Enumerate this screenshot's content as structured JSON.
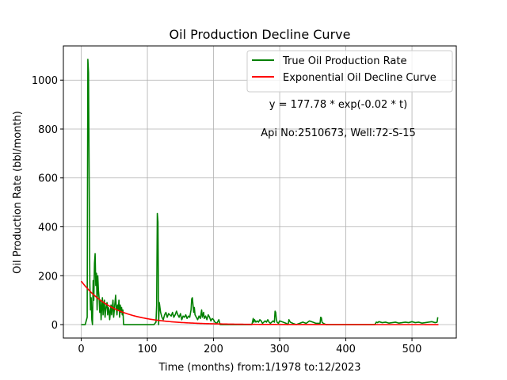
{
  "chart_data": {
    "type": "line",
    "title": "Oil Production Decline Curve",
    "xlabel": "Time (months) from:1/1978 to:12/2023",
    "ylabel": "Oil Production Rate (bbl/month)",
    "xlim": [
      -27,
      567
    ],
    "ylim": [
      -55,
      1140
    ],
    "xticks": [
      0,
      100,
      200,
      300,
      400,
      500
    ],
    "yticks": [
      0,
      200,
      400,
      600,
      800,
      1000
    ],
    "grid": true,
    "legend_position": "top-right",
    "annotations": [
      "y = 177.78 * exp(-0.02 * t)",
      "Api No:2510673, Well:72-S-15"
    ],
    "series": [
      {
        "name": "True Oil Production Rate",
        "color": "#008000",
        "kind": "observed",
        "x": [
          0,
          6,
          9,
          10,
          11,
          12,
          13,
          14,
          15,
          16,
          17,
          18,
          19,
          20,
          21,
          22,
          23,
          24,
          25,
          26,
          27,
          28,
          29,
          30,
          31,
          32,
          33,
          34,
          35,
          36,
          37,
          38,
          39,
          40,
          41,
          42,
          43,
          44,
          45,
          46,
          47,
          48,
          49,
          50,
          51,
          52,
          53,
          54,
          55,
          56,
          57,
          58,
          59,
          60,
          61,
          62,
          63,
          64,
          70,
          80,
          90,
          100,
          110,
          113,
          114,
          115,
          116,
          117,
          118,
          120,
          122,
          124,
          126,
          128,
          130,
          132,
          134,
          136,
          138,
          140,
          142,
          144,
          146,
          148,
          150,
          152,
          154,
          156,
          158,
          160,
          162,
          164,
          166,
          167,
          168,
          169,
          170,
          171,
          172,
          174,
          176,
          178,
          180,
          182,
          183,
          184,
          185,
          186,
          188,
          190,
          192,
          194,
          196,
          198,
          200,
          202,
          205,
          208,
          210,
          212,
          215,
          220,
          230,
          240,
          250,
          258,
          260,
          261,
          262,
          264,
          266,
          268,
          270,
          272,
          274,
          276,
          278,
          280,
          282,
          284,
          286,
          288,
          290,
          292,
          293,
          294,
          295,
          296,
          298,
          300,
          305,
          310,
          312,
          313,
          314,
          316,
          320,
          325,
          330,
          335,
          340,
          345,
          350,
          355,
          360,
          361,
          362,
          363,
          364,
          366,
          370,
          380,
          390,
          400,
          410,
          420,
          430,
          440,
          444,
          446,
          448,
          450,
          455,
          460,
          465,
          470,
          475,
          480,
          485,
          490,
          495,
          500,
          505,
          510,
          515,
          520,
          525,
          530,
          535,
          538,
          539
        ],
        "y": [
          0,
          0,
          30,
          1085,
          1030,
          600,
          170,
          60,
          110,
          20,
          0,
          180,
          100,
          250,
          290,
          160,
          210,
          60,
          200,
          140,
          110,
          50,
          100,
          20,
          70,
          110,
          40,
          80,
          100,
          30,
          60,
          80,
          90,
          40,
          70,
          60,
          20,
          50,
          80,
          40,
          70,
          100,
          30,
          60,
          90,
          120,
          70,
          40,
          80,
          60,
          100,
          30,
          80,
          50,
          70,
          40,
          60,
          0,
          0,
          0,
          0,
          0,
          0,
          10,
          80,
          455,
          420,
          0,
          90,
          50,
          30,
          20,
          40,
          50,
          30,
          45,
          40,
          35,
          50,
          30,
          40,
          55,
          40,
          30,
          45,
          20,
          35,
          30,
          40,
          25,
          35,
          30,
          60,
          105,
          110,
          80,
          50,
          70,
          40,
          30,
          20,
          35,
          25,
          60,
          30,
          40,
          50,
          25,
          35,
          20,
          40,
          30,
          15,
          25,
          20,
          10,
          5,
          20,
          0,
          0,
          0,
          0,
          0,
          0,
          0,
          0,
          25,
          10,
          20,
          10,
          15,
          10,
          20,
          15,
          5,
          10,
          15,
          10,
          20,
          10,
          5,
          10,
          15,
          10,
          55,
          50,
          20,
          10,
          5,
          15,
          10,
          5,
          0,
          5,
          20,
          10,
          5,
          0,
          5,
          10,
          5,
          15,
          10,
          5,
          5,
          5,
          30,
          28,
          10,
          5,
          0,
          0,
          0,
          0,
          0,
          0,
          0,
          0,
          0,
          10,
          8,
          12,
          8,
          10,
          6,
          8,
          10,
          6,
          8,
          10,
          8,
          12,
          8,
          10,
          6,
          8,
          10,
          12,
          8,
          10,
          30
        ]
      },
      {
        "name": "Exponential Oil Decline Curve",
        "color": "#ff0000",
        "kind": "fit",
        "amplitude": 177.78,
        "rate": -0.02,
        "t_range": [
          0,
          540
        ]
      }
    ]
  }
}
